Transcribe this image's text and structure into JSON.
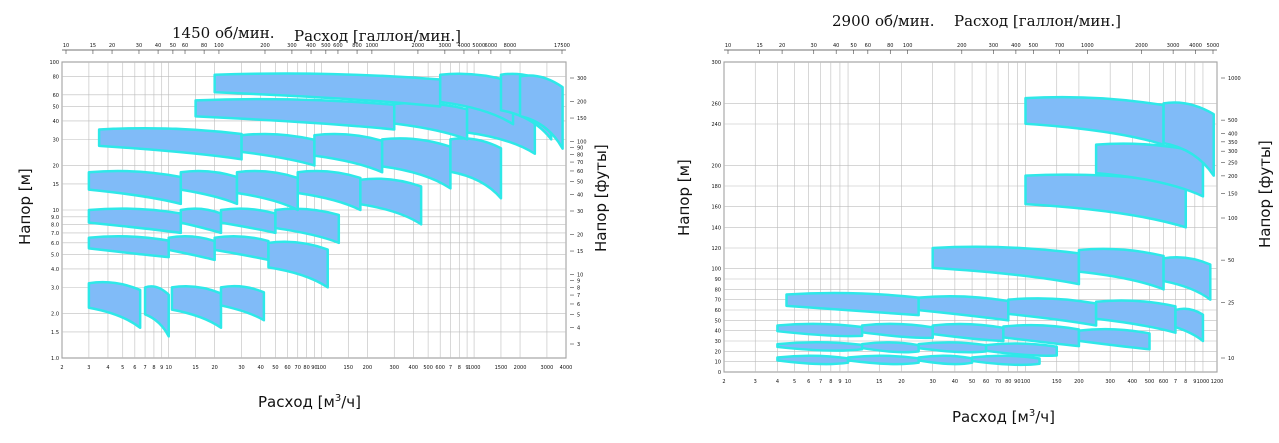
{
  "colors": {
    "fill": "#80bbf8",
    "outline": "#2ee8e8",
    "grid": "#bdbdbd",
    "axis": "#444444"
  },
  "chart_data": [
    {
      "type": "area",
      "speed_label": "1450 об/мин.",
      "top_axis_label": "Расход [галлон/мин.]",
      "xlabel_base": "Расход [м",
      "xlabel_sup": "3",
      "xlabel_end": "/ч]",
      "ylabel": "Напор [м]",
      "ylabel_right": "Напор [футы]",
      "x_scale": "log",
      "y_scale": "log",
      "xlim": [
        2,
        4000
      ],
      "ylim": [
        1,
        100
      ],
      "x_ticks": [
        "2",
        "3",
        "4",
        "5",
        "6",
        "7",
        "8",
        "9",
        "10",
        "15",
        "20",
        "30",
        "40",
        "50",
        "60",
        "70",
        "80",
        "90",
        "100",
        "150",
        "200",
        "300",
        "400",
        "500",
        "600",
        "700",
        "800",
        "900",
        "1000",
        "1500",
        "2000",
        "3000",
        "4000"
      ],
      "x_tick_labels_shown": [
        "2",
        "3",
        "4",
        "5",
        "6",
        "7",
        "8",
        "9",
        "10",
        "15",
        "20",
        "30",
        "40",
        "50",
        "60",
        "70",
        "80",
        "90",
        "100",
        "150",
        "200",
        "300",
        "400",
        "500",
        "600",
        "7",
        "8",
        "9",
        "1000",
        "1500",
        "2000",
        "3000",
        "4000"
      ],
      "y_ticks": [
        "1.0",
        "1.5",
        "2.0",
        "3.0",
        "4.0",
        "5.0",
        "6.0",
        "7.0",
        "8.0",
        "9.0",
        "10",
        "15",
        "20",
        "30",
        "40",
        "50",
        "60",
        "80",
        "100"
      ],
      "gpm_ticks": [
        "10",
        "15",
        "20",
        "30",
        "40",
        "50",
        "60",
        "80",
        "100",
        "200",
        "300",
        "400",
        "500",
        "600",
        "800",
        "1000",
        "2000",
        "3000",
        "4000",
        "5000",
        "6000",
        "8000",
        "17500"
      ],
      "ft_ticks": [
        "3",
        "4",
        "5",
        "6",
        "7",
        "8",
        "9",
        "10",
        "15",
        "20",
        "30",
        "40",
        "50",
        "60",
        "70",
        "80",
        "90",
        "100",
        "150",
        "200",
        "300"
      ],
      "series": [
        {
          "q1": 3,
          "q2": 6.5,
          "h_top": 3.2,
          "h_bot": 1.6
        },
        {
          "q1": 7,
          "q2": 10,
          "h_top": 3.0,
          "h_bot": 1.4
        },
        {
          "q1": 10.5,
          "q2": 22,
          "h_top": 3.0,
          "h_bot": 1.6
        },
        {
          "q1": 22,
          "q2": 42,
          "h_top": 3.0,
          "h_bot": 1.8
        },
        {
          "q1": 3,
          "q2": 10,
          "h_top": 6.5,
          "h_bot": 4.8
        },
        {
          "q1": 10,
          "q2": 20,
          "h_top": 6.5,
          "h_bot": 4.6
        },
        {
          "q1": 20,
          "q2": 45,
          "h_top": 6.5,
          "h_bot": 4.6
        },
        {
          "q1": 45,
          "q2": 110,
          "h_top": 6.0,
          "h_bot": 3.0
        },
        {
          "q1": 3,
          "q2": 12,
          "h_top": 10,
          "h_bot": 7
        },
        {
          "q1": 12,
          "q2": 22,
          "h_top": 10,
          "h_bot": 7
        },
        {
          "q1": 22,
          "q2": 50,
          "h_top": 10,
          "h_bot": 7
        },
        {
          "q1": 50,
          "q2": 130,
          "h_top": 10,
          "h_bot": 6
        },
        {
          "q1": 3,
          "q2": 12,
          "h_top": 18,
          "h_bot": 11
        },
        {
          "q1": 12,
          "q2": 28,
          "h_top": 18,
          "h_bot": 11
        },
        {
          "q1": 28,
          "q2": 70,
          "h_top": 18,
          "h_bot": 10
        },
        {
          "q1": 70,
          "q2": 180,
          "h_top": 18,
          "h_bot": 10
        },
        {
          "q1": 180,
          "q2": 450,
          "h_top": 16,
          "h_bot": 8
        },
        {
          "q1": 3.5,
          "q2": 30,
          "h_top": 35,
          "h_bot": 22
        },
        {
          "q1": 30,
          "q2": 90,
          "h_top": 32,
          "h_bot": 20
        },
        {
          "q1": 90,
          "q2": 250,
          "h_top": 32,
          "h_bot": 18
        },
        {
          "q1": 250,
          "q2": 700,
          "h_top": 30,
          "h_bot": 14
        },
        {
          "q1": 700,
          "q2": 1500,
          "h_top": 30,
          "h_bot": 12
        },
        {
          "q1": 15,
          "q2": 300,
          "h_top": 55,
          "h_bot": 35
        },
        {
          "q1": 300,
          "q2": 900,
          "h_top": 52,
          "h_bot": 30
        },
        {
          "q1": 900,
          "q2": 2500,
          "h_top": 50,
          "h_bot": 24
        },
        {
          "q1": 20,
          "q2": 600,
          "h_top": 82,
          "h_bot": 50
        },
        {
          "q1": 600,
          "q2": 1800,
          "h_top": 82,
          "h_bot": 38
        },
        {
          "q1": 1500,
          "q2": 3200,
          "h_top": 82,
          "h_bot": 30
        },
        {
          "q1": 2000,
          "q2": 3800,
          "h_top": 80,
          "h_bot": 26
        }
      ]
    },
    {
      "type": "area",
      "speed_label": "2900 об/мин.",
      "top_axis_label": "Расход [галлон/мин.]",
      "xlabel_base": "Расход [м",
      "xlabel_sup": "3",
      "xlabel_end": "/ч]",
      "ylabel": "Напор [м]",
      "ylabel_right": "Напор [футы]",
      "x_scale": "log",
      "y_scale": "linear",
      "xlim": [
        2,
        1200
      ],
      "ylim": [
        0,
        300
      ],
      "x_ticks": [
        "2",
        "3",
        "4",
        "5",
        "6",
        "7",
        "8",
        "9",
        "10",
        "15",
        "20",
        "30",
        "40",
        "50",
        "60",
        "70",
        "80",
        "90",
        "100",
        "150",
        "200",
        "300",
        "400",
        "500",
        "600",
        "700",
        "800",
        "900",
        "1000",
        "1200"
      ],
      "x_tick_labels_shown": [
        "2",
        "3",
        "4",
        "5",
        "6",
        "7",
        "8",
        "9",
        "10",
        "15",
        "20",
        "30",
        "40",
        "50",
        "60",
        "70",
        "80",
        "90",
        "100",
        "150",
        "200",
        "300",
        "400",
        "500",
        "600",
        "7",
        "8",
        "9",
        "1000",
        "1200"
      ],
      "y_ticks": [
        "0",
        "10",
        "20",
        "30",
        "40",
        "50",
        "60",
        "70",
        "80",
        "90",
        "100",
        "120",
        "140",
        "160",
        "180",
        "200",
        "240",
        "260",
        "300"
      ],
      "gpm_ticks": [
        "10",
        "15",
        "20",
        "30",
        "40",
        "50",
        "60",
        "80",
        "100",
        "200",
        "300",
        "400",
        "500",
        "700",
        "1000",
        "2000",
        "3000",
        "4000",
        "5000"
      ],
      "ft_ticks": [
        "10",
        "25",
        "50",
        "100",
        "150",
        "200",
        "250",
        "300",
        "350",
        "400",
        "500",
        "1000"
      ],
      "series": [
        {
          "q1": 4,
          "q2": 10,
          "h_top": 14,
          "h_bot": 9
        },
        {
          "q1": 10,
          "q2": 25,
          "h_top": 14,
          "h_bot": 9
        },
        {
          "q1": 25,
          "q2": 50,
          "h_top": 14,
          "h_bot": 9
        },
        {
          "q1": 50,
          "q2": 120,
          "h_top": 14,
          "h_bot": 8
        },
        {
          "q1": 4,
          "q2": 12,
          "h_top": 27,
          "h_bot": 22
        },
        {
          "q1": 12,
          "q2": 25,
          "h_top": 27,
          "h_bot": 20
        },
        {
          "q1": 25,
          "q2": 60,
          "h_top": 27,
          "h_bot": 20
        },
        {
          "q1": 60,
          "q2": 150,
          "h_top": 26,
          "h_bot": 16
        },
        {
          "q1": 4,
          "q2": 12,
          "h_top": 45,
          "h_bot": 35
        },
        {
          "q1": 12,
          "q2": 30,
          "h_top": 45,
          "h_bot": 33
        },
        {
          "q1": 30,
          "q2": 75,
          "h_top": 45,
          "h_bot": 30
        },
        {
          "q1": 75,
          "q2": 200,
          "h_top": 44,
          "h_bot": 25
        },
        {
          "q1": 200,
          "q2": 500,
          "h_top": 40,
          "h_bot": 22
        },
        {
          "q1": 4.5,
          "q2": 25,
          "h_top": 75,
          "h_bot": 55
        },
        {
          "q1": 25,
          "q2": 80,
          "h_top": 72,
          "h_bot": 50
        },
        {
          "q1": 80,
          "q2": 250,
          "h_top": 70,
          "h_bot": 45
        },
        {
          "q1": 250,
          "q2": 700,
          "h_top": 68,
          "h_bot": 38
        },
        {
          "q1": 700,
          "q2": 1000,
          "h_top": 60,
          "h_bot": 30
        },
        {
          "q1": 30,
          "q2": 200,
          "h_top": 120,
          "h_bot": 85
        },
        {
          "q1": 200,
          "q2": 600,
          "h_top": 118,
          "h_bot": 80
        },
        {
          "q1": 600,
          "q2": 1100,
          "h_top": 110,
          "h_bot": 70
        },
        {
          "q1": 100,
          "q2": 800,
          "h_top": 190,
          "h_bot": 140
        },
        {
          "q1": 250,
          "q2": 1000,
          "h_top": 220,
          "h_bot": 170
        },
        {
          "q1": 100,
          "q2": 600,
          "h_top": 265,
          "h_bot": 220
        },
        {
          "q1": 600,
          "q2": 1150,
          "h_top": 260,
          "h_bot": 190
        }
      ]
    }
  ]
}
